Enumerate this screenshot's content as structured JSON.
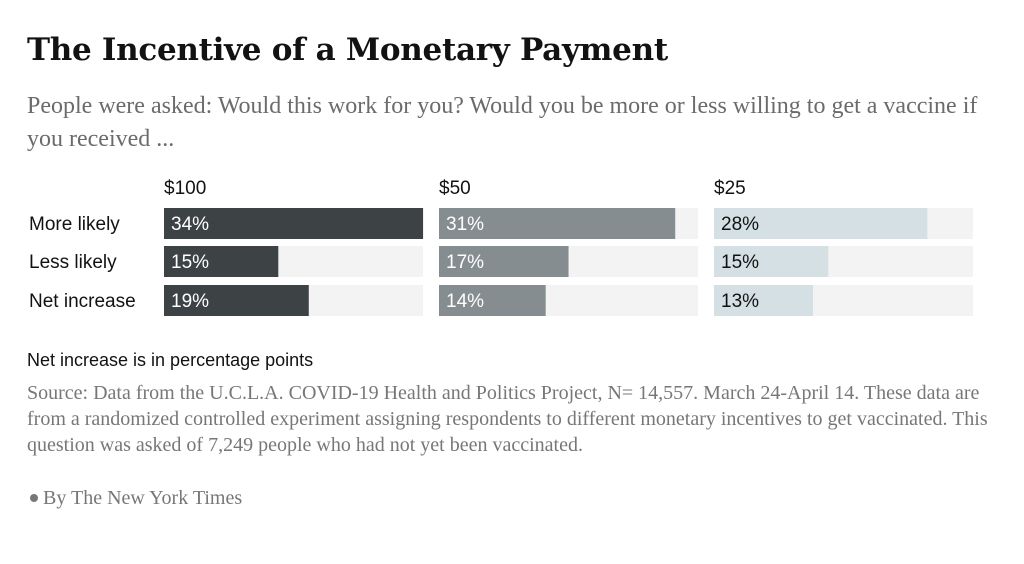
{
  "header": {
    "title": "The Incentive of a Monetary Payment",
    "subtitle": "People were asked: Would this work for you? Would you be more or less willing to get a vaccine if you received ..."
  },
  "chart_data": {
    "type": "bar",
    "orientation": "horizontal",
    "layout": "small-multiples",
    "categories": [
      "More likely",
      "Less likely",
      "Net increase"
    ],
    "xlim": [
      0,
      100
    ],
    "grid": false,
    "series": [
      {
        "name": "$100",
        "values": [
          34,
          15,
          19
        ],
        "labels": [
          "34%",
          "15%",
          "19%"
        ],
        "color": "#3d4245",
        "label_color": "#ffffff"
      },
      {
        "name": "$50",
        "values": [
          31,
          17,
          14
        ],
        "labels": [
          "31%",
          "17%",
          "14%"
        ],
        "color": "#868d90",
        "label_color": "#ffffff"
      },
      {
        "name": "$25",
        "values": [
          28,
          15,
          13
        ],
        "labels": [
          "28%",
          "15%",
          "13%"
        ],
        "color": "#d5e0e4",
        "label_color": "#121212"
      }
    ],
    "track_color": "#f3f3f3"
  },
  "notes": {
    "units_note": "Net increase is in percentage points",
    "source": "Source: Data from the U.C.L.A. COVID-19 Health and Politics Project, N= 14,557. March 24-April 14. These data are from a randomized controlled experiment assigning respondents to different monetary incentives to get vaccinated. This question was asked of 7,249 people who had not yet been vaccinated.",
    "byline": "By The New York Times"
  }
}
